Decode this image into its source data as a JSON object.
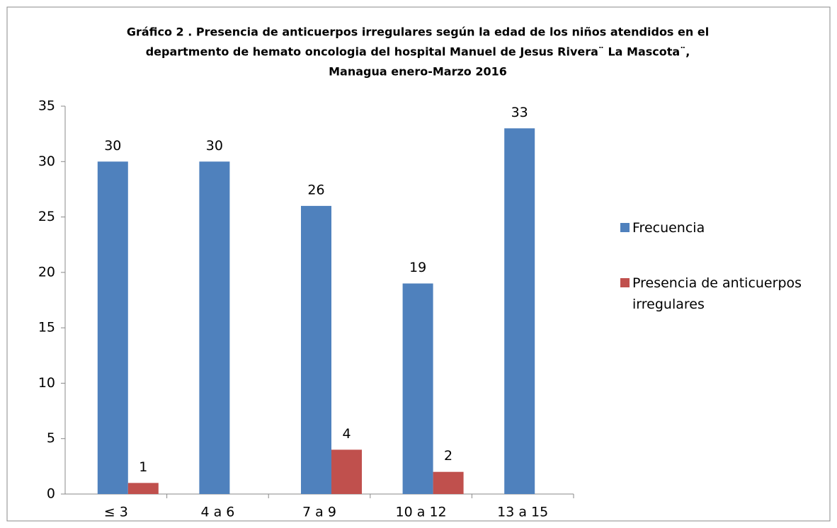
{
  "chart_data": {
    "type": "bar",
    "title": [
      "Gráfico 2 . Presencia de anticuerpos irregulares según la edad de los  niños atendidos en el",
      "departmento  de hemato oncologia del hospital Manuel de Jesus Rivera¨ La Mascota¨,",
      "Managua enero-Marzo 2016"
    ],
    "categories": [
      "≤ 3",
      "4 a 6",
      "7 a 9",
      "10 a 12",
      "13 a 15"
    ],
    "series": [
      {
        "name": "Frecuencia",
        "color": "#4f81bd",
        "values": [
          30,
          30,
          26,
          19,
          33
        ]
      },
      {
        "name": "Presencia de anticuerpos irregulares",
        "color": "#c0504d",
        "values": [
          1,
          null,
          4,
          2,
          null
        ]
      }
    ],
    "ylim": [
      0,
      35
    ],
    "yticks": [
      0,
      5,
      10,
      15,
      20,
      25,
      30,
      35
    ],
    "legend": "right"
  }
}
